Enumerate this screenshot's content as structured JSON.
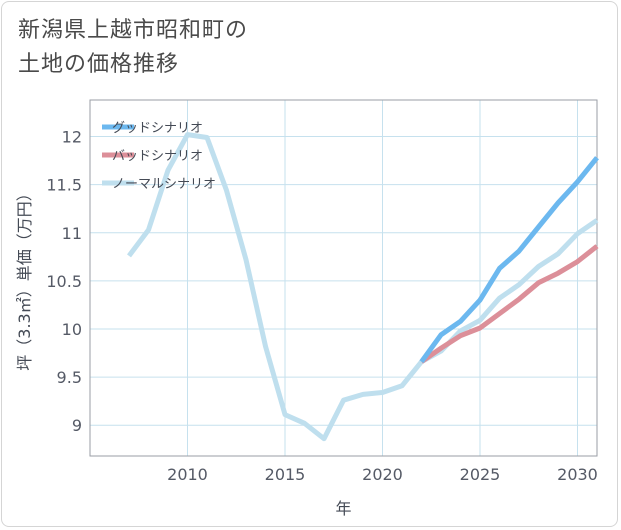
{
  "title_line1": "新潟県上越市昭和町の",
  "title_line2": "土地の価格推移",
  "chart_data": {
    "type": "line",
    "title": "新潟県上越市昭和町の土地の価格推移",
    "xlabel": "年",
    "ylabel": "坪（3.3㎡）単価（万円）",
    "xlim": [
      2005,
      2031
    ],
    "ylim": [
      8.68,
      12.38
    ],
    "xticks": [
      2010,
      2015,
      2020,
      2025,
      2030
    ],
    "yticks": [
      9,
      9.5,
      10,
      10.5,
      11,
      11.5,
      12
    ],
    "grid": true,
    "legend_position": "top-left",
    "series": [
      {
        "name": "グッドシナリオ",
        "color": "#6cb8ef",
        "x": [
          2022,
          2023,
          2024,
          2025,
          2026,
          2027,
          2028,
          2029,
          2030,
          2031
        ],
        "y": [
          9.66,
          9.94,
          10.08,
          10.3,
          10.63,
          10.81,
          11.06,
          11.31,
          11.53,
          11.78
        ]
      },
      {
        "name": "バッドシナリオ",
        "color": "#dc8f99",
        "x": [
          2022,
          2023,
          2024,
          2025,
          2026,
          2027,
          2028,
          2029,
          2030,
          2031
        ],
        "y": [
          9.66,
          9.8,
          9.93,
          10.01,
          10.16,
          10.31,
          10.48,
          10.58,
          10.7,
          10.86
        ]
      },
      {
        "name": "ノーマルシナリオ",
        "color": "#bfdfee",
        "x": [
          2007,
          2008,
          2009,
          2010,
          2011,
          2012,
          2013,
          2014,
          2015,
          2016,
          2017,
          2018,
          2019,
          2020,
          2021,
          2022,
          2023,
          2024,
          2025,
          2026,
          2027,
          2028,
          2029,
          2030,
          2031
        ],
        "y": [
          10.76,
          11.03,
          11.65,
          12.02,
          11.99,
          11.44,
          10.72,
          9.82,
          9.11,
          9.02,
          8.86,
          9.26,
          9.32,
          9.34,
          9.41,
          9.66,
          9.77,
          9.98,
          10.09,
          10.32,
          10.46,
          10.65,
          10.78,
          10.99,
          11.13
        ]
      }
    ]
  }
}
